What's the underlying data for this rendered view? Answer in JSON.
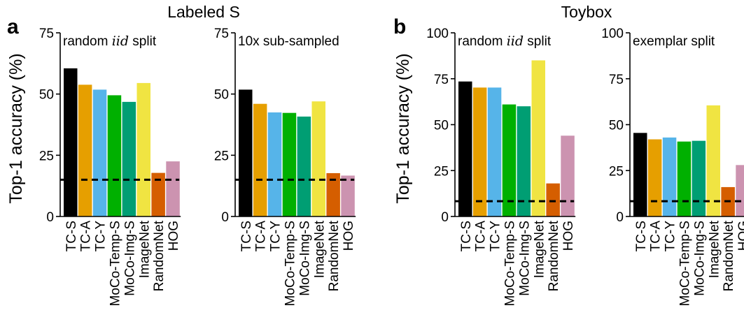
{
  "figure": {
    "panels": [
      {
        "letter": "a",
        "title": "Labeled S"
      },
      {
        "letter": "b",
        "title": "Toybox"
      }
    ],
    "ylabel": "Top-1 accuracy (%)"
  },
  "colors": {
    "TC-S": "#000000",
    "TC-A": "#E69F00",
    "TC-Y": "#56B4E9",
    "MoCo-Temp-S": "#00B000",
    "MoCo-Img-S": "#009E73",
    "ImageNet": "#F0E442",
    "RandomNet": "#D55E00",
    "HOG": "#CC93B0",
    "chance_line": "#000000"
  },
  "chart_data": [
    {
      "type": "bar",
      "group": "Labeled S",
      "subtitle": {
        "pre": "random ",
        "italic": "iid",
        "post": " split"
      },
      "categories": [
        "TC-S",
        "TC-A",
        "TC-Y",
        "MoCo-Temp-S",
        "MoCo-Img-S",
        "ImageNet",
        "RandomNet",
        "HOG"
      ],
      "values": [
        60.5,
        53.8,
        51.8,
        49.5,
        46.8,
        54.5,
        17.8,
        22.5
      ],
      "ylim": [
        0,
        75
      ],
      "yticks": [
        "0",
        "25",
        "50",
        "75"
      ],
      "chance": 15
    },
    {
      "type": "bar",
      "group": "Labeled S",
      "subtitle": {
        "pre": "10x sub-sampled",
        "italic": "",
        "post": ""
      },
      "categories": [
        "TC-S",
        "TC-A",
        "TC-Y",
        "MoCo-Temp-S",
        "MoCo-Img-S",
        "ImageNet",
        "RandomNet",
        "HOG"
      ],
      "values": [
        51.8,
        46.0,
        42.5,
        42.3,
        40.8,
        47.0,
        17.7,
        16.7
      ],
      "ylim": [
        0,
        75
      ],
      "yticks": [
        "0",
        "25",
        "50",
        "75"
      ],
      "chance": 15
    },
    {
      "type": "bar",
      "group": "Toybox",
      "subtitle": {
        "pre": "random ",
        "italic": "iid",
        "post": " split"
      },
      "categories": [
        "TC-S",
        "TC-A",
        "TC-Y",
        "MoCo-Temp-S",
        "MoCo-Img-S",
        "ImageNet",
        "RandomNet",
        "HOG"
      ],
      "values": [
        73.5,
        70.2,
        70.2,
        61.0,
        60.0,
        85.0,
        18.0,
        44.0
      ],
      "ylim": [
        0,
        100
      ],
      "yticks": [
        "0",
        "25",
        "50",
        "75",
        "100"
      ],
      "chance": 8.3
    },
    {
      "type": "bar",
      "group": "Toybox",
      "subtitle": {
        "pre": "exemplar split",
        "italic": "",
        "post": ""
      },
      "categories": [
        "TC-S",
        "TC-A",
        "TC-Y",
        "MoCo-Temp-S",
        "MoCo-Img-S",
        "ImageNet",
        "RandomNet",
        "HOG"
      ],
      "values": [
        45.5,
        42.0,
        43.0,
        40.8,
        41.2,
        60.5,
        16.0,
        28.0
      ],
      "ylim": [
        0,
        100
      ],
      "yticks": [
        "0",
        "25",
        "50",
        "75",
        "100"
      ],
      "chance": 8.3
    }
  ]
}
